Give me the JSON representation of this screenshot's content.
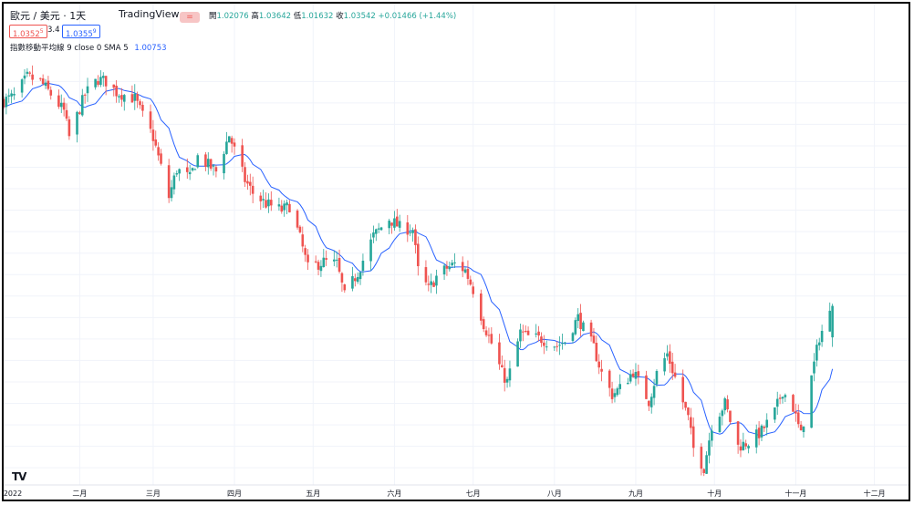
{
  "header": {
    "symbol": "歐元 / 美元 · 1天",
    "source": "TradingView",
    "ohlc": [
      {
        "label": "開",
        "value": "1.02076"
      },
      {
        "label": "高",
        "value": "1.03642"
      },
      {
        "label": "低",
        "value": "1.01632"
      },
      {
        "label": "收",
        "value": "1.03542"
      }
    ],
    "change": "+0.01466 (+1.44%)",
    "bid": "1.0352",
    "bid_sup": "5",
    "spread": "3.4",
    "ask": "1.0355",
    "ask_sup": "9",
    "indicator_label": "指數移動平均線 9 close 0 SMA 5",
    "indicator_value": "1.00753"
  },
  "colors": {
    "up": "#26a69a",
    "down": "#ef5350",
    "ma": "#2962ff",
    "grid": "#f0f3fa",
    "text": "#131722"
  },
  "chart_data": {
    "type": "candlestick",
    "title": "歐元 / 美元 · 1天",
    "x_tick_labels": [
      "2022",
      "二月",
      "三月",
      "四月",
      "五月",
      "六月",
      "七月",
      "八月",
      "九月",
      "十月",
      "十一月",
      "十二月"
    ],
    "x_ticks": [
      "2022-01-01",
      "2022-02-01",
      "2022-03-01",
      "2022-04-01",
      "2022-05-01",
      "2022-06-01",
      "2022-07-01",
      "2022-08-01",
      "2022-09-01",
      "2022-10-01",
      "2022-11-01",
      "2022-12-01"
    ],
    "x_range": [
      "2022-01-03",
      "2022-12-14"
    ],
    "ylim": [
      0.952,
      1.155
    ],
    "grid": true,
    "ma_series": "指數移動平均線 9 close 0 SMA 5",
    "last": {
      "date": "2022-11-15",
      "open": 1.02076,
      "high": 1.03642,
      "low": 1.01632,
      "close": 1.03542
    },
    "close_anchors": [
      [
        "2022-01-03",
        1.131
      ],
      [
        "2022-01-07",
        1.133
      ],
      [
        "2022-01-12",
        1.142
      ],
      [
        "2022-01-17",
        1.14
      ],
      [
        "2022-01-21",
        1.134
      ],
      [
        "2022-01-26",
        1.126
      ],
      [
        "2022-01-28",
        1.114
      ],
      [
        "2022-02-03",
        1.134
      ],
      [
        "2022-02-08",
        1.141
      ],
      [
        "2022-02-11",
        1.14
      ],
      [
        "2022-02-15",
        1.135
      ],
      [
        "2022-02-22",
        1.132
      ],
      [
        "2022-02-25",
        1.124
      ],
      [
        "2022-03-01",
        1.114
      ],
      [
        "2022-03-04",
        1.1
      ],
      [
        "2022-03-07",
        1.086
      ],
      [
        "2022-03-10",
        1.099
      ],
      [
        "2022-03-15",
        1.095
      ],
      [
        "2022-03-18",
        1.105
      ],
      [
        "2022-03-22",
        1.101
      ],
      [
        "2022-03-25",
        1.098
      ],
      [
        "2022-03-30",
        1.115
      ],
      [
        "2022-04-05",
        1.094
      ],
      [
        "2022-04-08",
        1.088
      ],
      [
        "2022-04-13",
        1.083
      ],
      [
        "2022-04-19",
        1.08
      ],
      [
        "2022-04-22",
        1.082
      ],
      [
        "2022-04-26",
        1.067
      ],
      [
        "2022-04-29",
        1.053
      ],
      [
        "2022-05-05",
        1.056
      ],
      [
        "2022-05-10",
        1.055
      ],
      [
        "2022-05-13",
        1.04
      ],
      [
        "2022-05-18",
        1.051
      ],
      [
        "2022-05-24",
        1.068
      ],
      [
        "2022-05-30",
        1.076
      ],
      [
        "2022-06-03",
        1.072
      ],
      [
        "2022-06-08",
        1.071
      ],
      [
        "2022-06-10",
        1.052
      ],
      [
        "2022-06-14",
        1.043
      ],
      [
        "2022-06-17",
        1.049
      ],
      [
        "2022-06-21",
        1.053
      ],
      [
        "2022-06-24",
        1.055
      ],
      [
        "2022-06-28",
        1.052
      ],
      [
        "2022-07-01",
        1.043
      ],
      [
        "2022-07-05",
        1.027
      ],
      [
        "2022-07-08",
        1.018
      ],
      [
        "2022-07-12",
        1.004
      ],
      [
        "2022-07-14",
        1.0
      ],
      [
        "2022-07-19",
        1.023
      ],
      [
        "2022-07-22",
        1.021
      ],
      [
        "2022-07-27",
        1.02
      ],
      [
        "2022-08-02",
        1.017
      ],
      [
        "2022-08-05",
        1.019
      ],
      [
        "2022-08-10",
        1.03
      ],
      [
        "2022-08-12",
        1.025
      ],
      [
        "2022-08-16",
        1.016
      ],
      [
        "2022-08-19",
        1.004
      ],
      [
        "2022-08-23",
        0.994
      ],
      [
        "2022-08-26",
        0.997
      ],
      [
        "2022-08-31",
        1.005
      ],
      [
        "2022-09-06",
        0.991
      ],
      [
        "2022-09-09",
        1.004
      ],
      [
        "2022-09-13",
        1.013
      ],
      [
        "2022-09-16",
        1.002
      ],
      [
        "2022-09-21",
        0.983
      ],
      [
        "2022-09-23",
        0.969
      ],
      [
        "2022-09-27",
        0.96
      ],
      [
        "2022-09-30",
        0.98
      ],
      [
        "2022-10-05",
        0.99
      ],
      [
        "2022-10-10",
        0.97
      ],
      [
        "2022-10-14",
        0.972
      ],
      [
        "2022-10-19",
        0.977
      ],
      [
        "2022-10-24",
        0.986
      ],
      [
        "2022-10-27",
        0.996
      ],
      [
        "2022-10-31",
        0.988
      ],
      [
        "2022-11-03",
        0.975
      ],
      [
        "2022-11-07",
        1.002
      ],
      [
        "2022-11-10",
        1.021
      ],
      [
        "2022-11-14",
        1.0318
      ],
      [
        "2022-11-15",
        1.03542
      ]
    ]
  }
}
